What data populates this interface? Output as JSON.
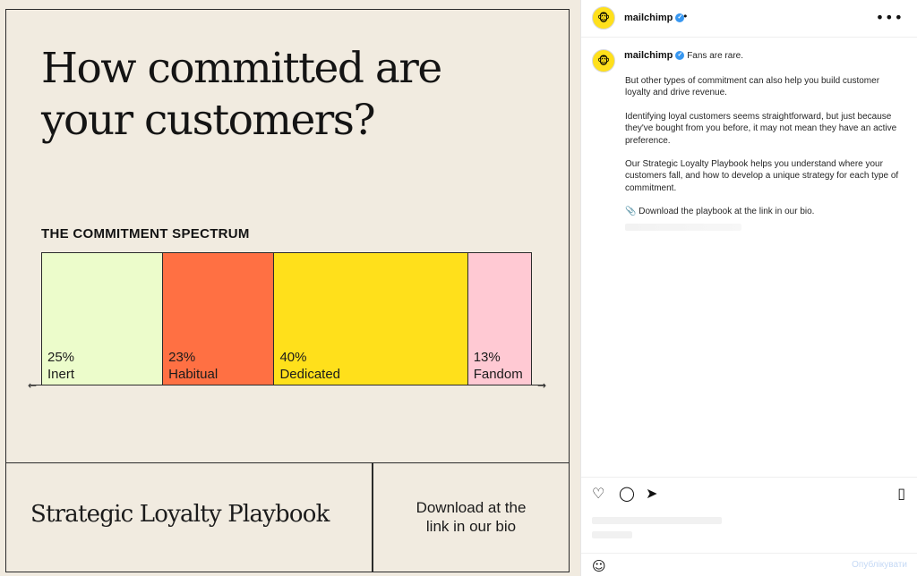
{
  "post_image": {
    "headline_line1": "How committed are",
    "headline_line2": "your customers?",
    "spectrum_title": "THE COMMITMENT SPECTRUM",
    "segments": [
      {
        "percent": "25%",
        "label": "Inert",
        "value": 25,
        "color": "#ecfccb"
      },
      {
        "percent": "23%",
        "label": "Habitual",
        "value": 23,
        "color": "#ff7043"
      },
      {
        "percent": "40%",
        "label": "Dedicated",
        "value": 40,
        "color": "#ffe01b"
      },
      {
        "percent": "13%",
        "label": "Fandom",
        "value": 13,
        "color": "#ffc9d3"
      }
    ],
    "playbook_title": "Strategic Loyalty Playbook",
    "download_line1": "Download at the",
    "download_line2": "link in our bio",
    "background_color": "#f1ebe0"
  },
  "header": {
    "username": "mailchimp",
    "separator": "•",
    "avatar_icon": "mailchimp-logo-icon"
  },
  "caption": {
    "username": "mailchimp",
    "first_line": "Fans are rare.",
    "para1": "But other types of commitment can also help you build customer loyalty and drive revenue.",
    "para2": "Identifying loyal customers seems straightforward, but just because they've bought from you before, it may not mean they have an active preference.",
    "para3": "Our Strategic Loyalty Playbook helps you understand where your customers fall, and how to develop a unique strategy for each type of commitment.",
    "para4": "📎 Download the playbook at the link in our bio."
  },
  "actions": {
    "like_icon": "heart-icon",
    "comment_icon": "comment-icon",
    "share_icon": "send-icon",
    "save_icon": "bookmark-icon"
  },
  "comment": {
    "publish_label": "Опублікувати"
  },
  "colors": {
    "verified": "#3897f0",
    "brand": "#ffe01b"
  }
}
